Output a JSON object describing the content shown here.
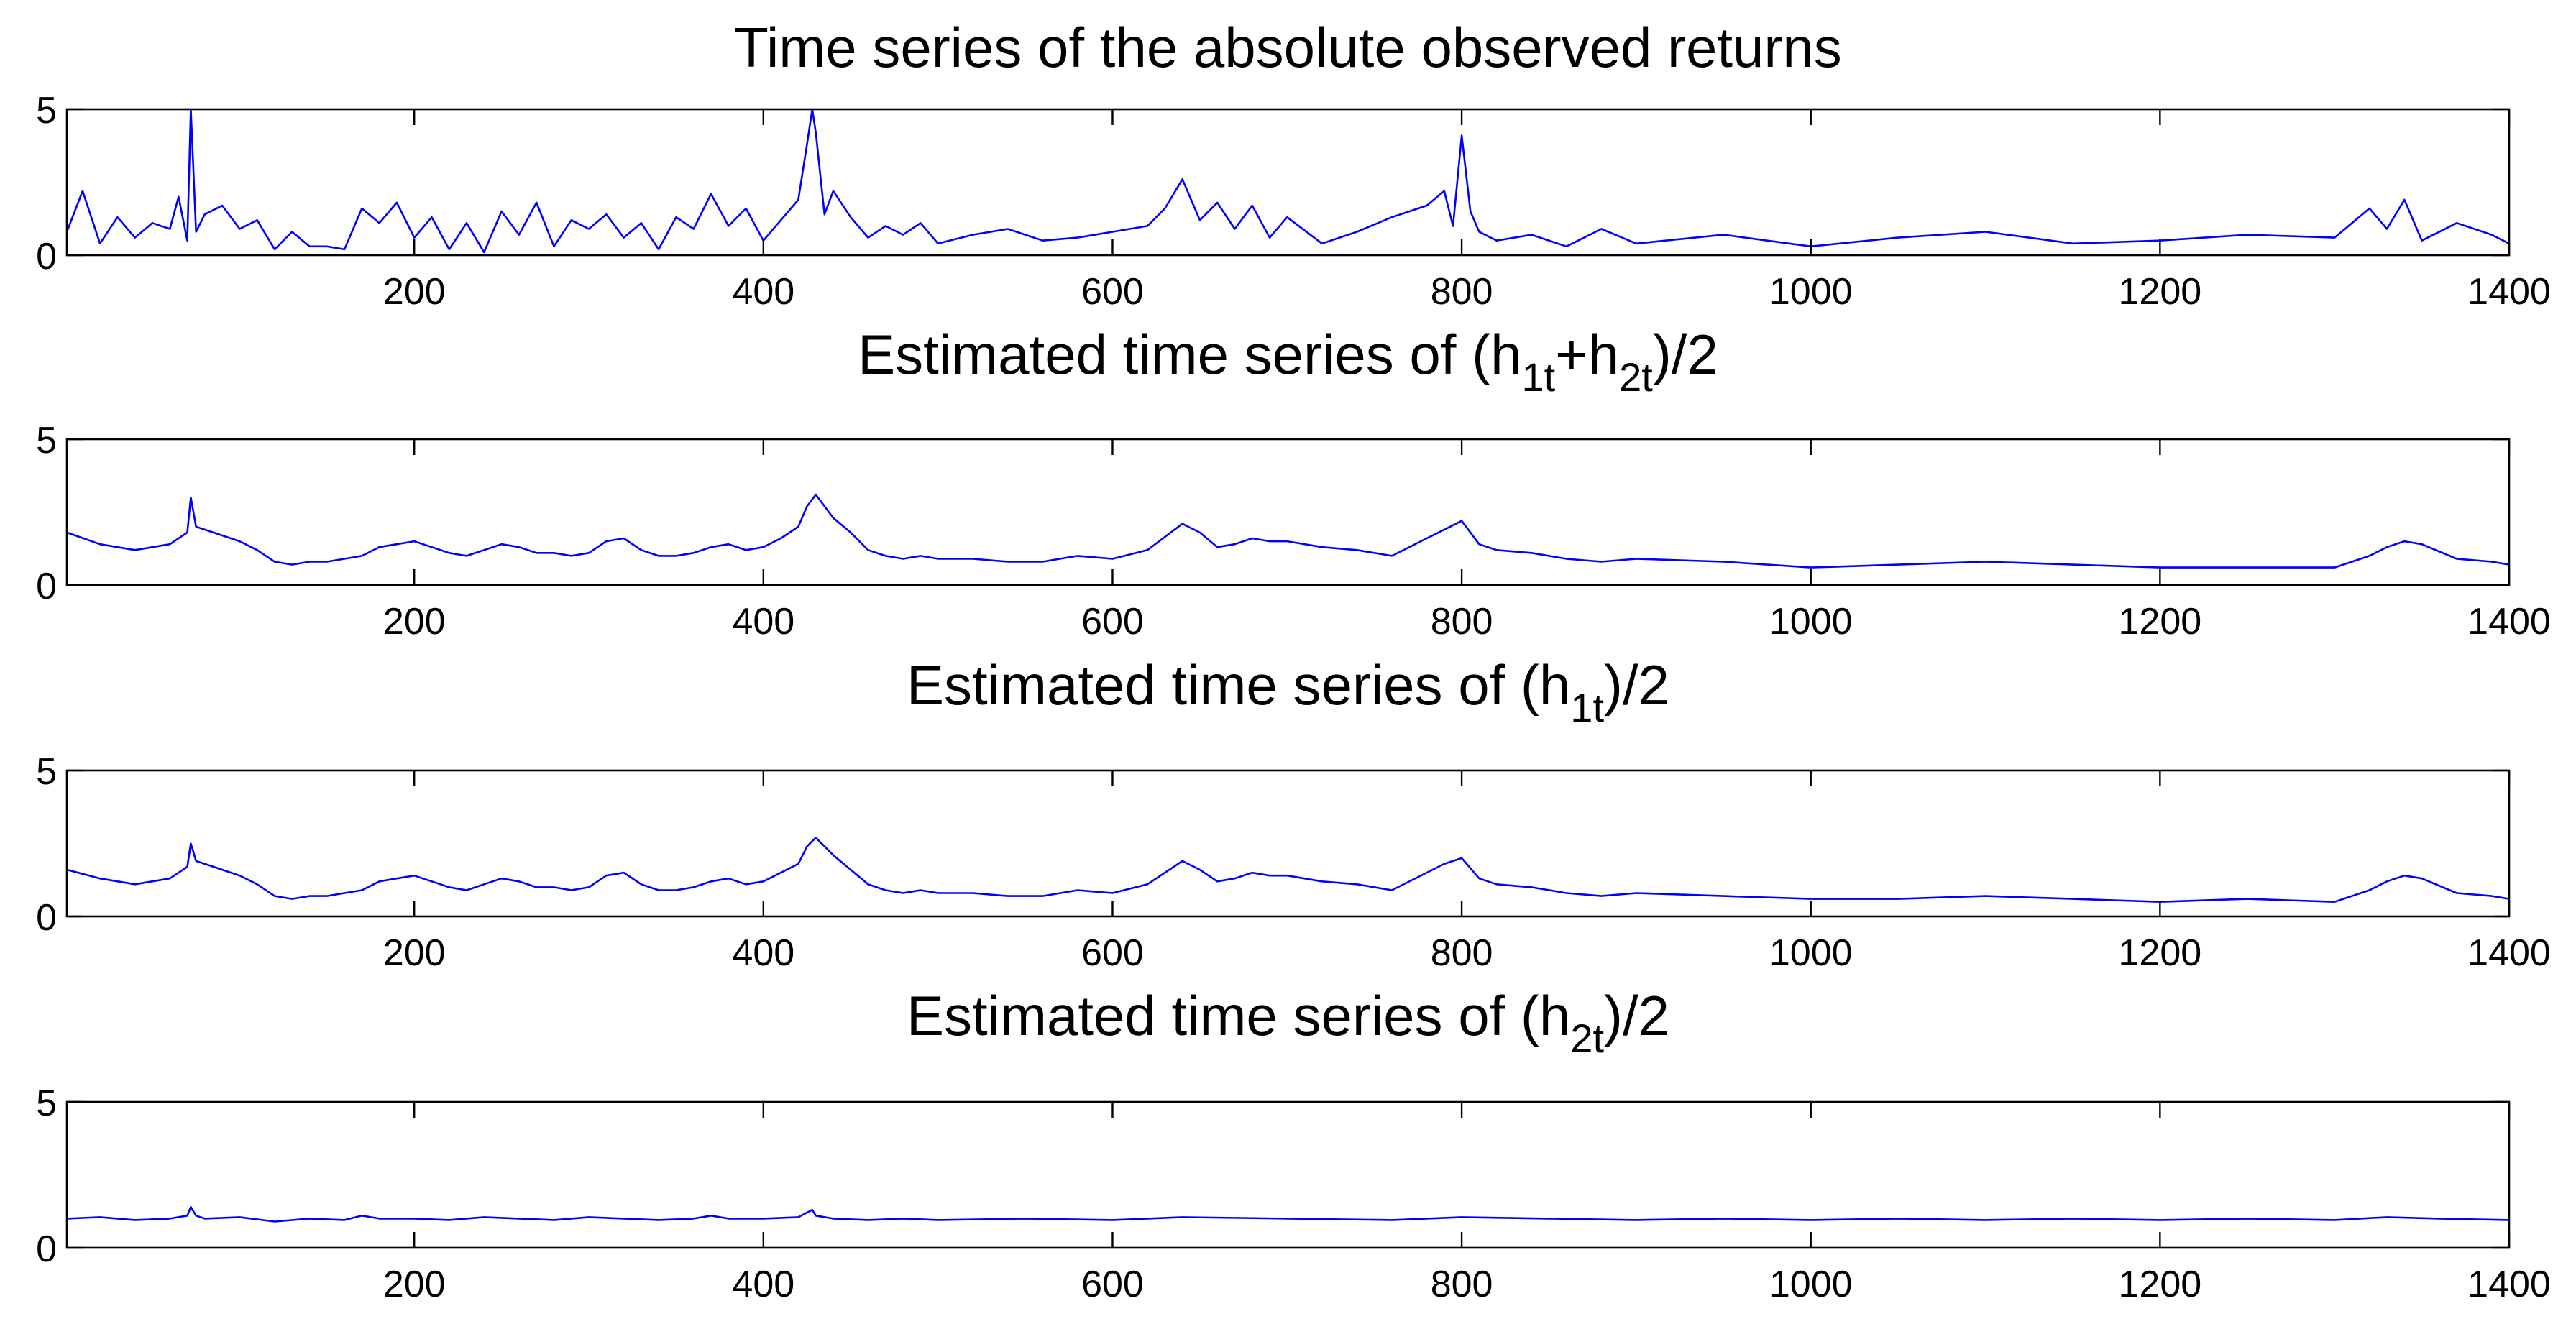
{
  "chart_data": [
    {
      "type": "line",
      "title_parts": [
        {
          "text": "Time series of the absolute observed returns",
          "sub": false
        }
      ],
      "xlim": [
        1,
        1400
      ],
      "ylim": [
        0,
        5
      ],
      "x_ticks": [
        200,
        400,
        600,
        800,
        1000,
        1200,
        1400
      ],
      "y_ticks": [
        0,
        5
      ],
      "color": "#0000ff",
      "series": [
        {
          "x": [
            1,
            10,
            20,
            30,
            40,
            50,
            60,
            65,
            70,
            72,
            75,
            80,
            90,
            100,
            110,
            120,
            130,
            140,
            150,
            160,
            170,
            180,
            190,
            200,
            210,
            220,
            230,
            240,
            250,
            260,
            270,
            280,
            290,
            300,
            310,
            320,
            330,
            340,
            350,
            360,
            370,
            380,
            390,
            400,
            410,
            420,
            425,
            428,
            430,
            435,
            440,
            450,
            460,
            470,
            480,
            490,
            500,
            520,
            540,
            560,
            580,
            600,
            620,
            630,
            640,
            650,
            660,
            670,
            680,
            690,
            700,
            720,
            740,
            760,
            780,
            790,
            795,
            800,
            805,
            810,
            820,
            840,
            860,
            880,
            900,
            950,
            1000,
            1050,
            1100,
            1150,
            1200,
            1250,
            1300,
            1320,
            1330,
            1340,
            1350,
            1370,
            1390,
            1400
          ],
          "y": [
            0.8,
            2.2,
            0.4,
            1.3,
            0.6,
            1.1,
            0.9,
            2.0,
            0.5,
            5.0,
            0.8,
            1.4,
            1.7,
            0.9,
            1.2,
            0.2,
            0.8,
            0.3,
            0.3,
            0.2,
            1.6,
            1.1,
            1.8,
            0.6,
            1.3,
            0.2,
            1.1,
            0.1,
            1.5,
            0.7,
            1.8,
            0.3,
            1.2,
            0.9,
            1.4,
            0.6,
            1.1,
            0.2,
            1.3,
            0.9,
            2.1,
            1.0,
            1.6,
            0.5,
            1.2,
            1.9,
            3.8,
            5.0,
            4.2,
            1.4,
            2.2,
            1.3,
            0.6,
            1.0,
            0.7,
            1.1,
            0.4,
            0.7,
            0.9,
            0.5,
            0.6,
            0.8,
            1.0,
            1.6,
            2.6,
            1.2,
            1.8,
            0.9,
            1.7,
            0.6,
            1.3,
            0.4,
            0.8,
            1.3,
            1.7,
            2.2,
            1.0,
            4.1,
            1.5,
            0.8,
            0.5,
            0.7,
            0.3,
            0.9,
            0.4,
            0.7,
            0.3,
            0.6,
            0.8,
            0.4,
            0.5,
            0.7,
            0.6,
            1.6,
            0.9,
            1.9,
            0.5,
            1.1,
            0.7,
            0.4
          ]
        }
      ]
    },
    {
      "type": "line",
      "title_parts": [
        {
          "text": "Estimated time series of (h",
          "sub": false
        },
        {
          "text": "1t",
          "sub": true
        },
        {
          "text": "+h",
          "sub": false
        },
        {
          "text": "2t",
          "sub": true
        },
        {
          "text": ")/2",
          "sub": false
        }
      ],
      "xlim": [
        1,
        1400
      ],
      "ylim": [
        0,
        5
      ],
      "x_ticks": [
        200,
        400,
        600,
        800,
        1000,
        1200,
        1400
      ],
      "y_ticks": [
        0,
        5
      ],
      "color": "#0000ff",
      "series": [
        {
          "x": [
            1,
            20,
            40,
            60,
            70,
            72,
            75,
            80,
            90,
            100,
            110,
            120,
            130,
            140,
            150,
            160,
            170,
            180,
            190,
            200,
            210,
            220,
            230,
            240,
            250,
            260,
            270,
            280,
            290,
            300,
            310,
            320,
            330,
            340,
            350,
            360,
            370,
            380,
            390,
            400,
            410,
            420,
            425,
            430,
            440,
            450,
            460,
            470,
            480,
            490,
            500,
            520,
            540,
            560,
            580,
            600,
            620,
            640,
            650,
            660,
            670,
            680,
            690,
            700,
            720,
            740,
            760,
            780,
            790,
            800,
            810,
            820,
            840,
            860,
            880,
            900,
            950,
            1000,
            1050,
            1100,
            1150,
            1200,
            1250,
            1300,
            1320,
            1330,
            1340,
            1350,
            1370,
            1390,
            1400
          ],
          "y": [
            1.8,
            1.4,
            1.2,
            1.4,
            1.8,
            3.0,
            2.0,
            1.9,
            1.7,
            1.5,
            1.2,
            0.8,
            0.7,
            0.8,
            0.8,
            0.9,
            1.0,
            1.3,
            1.4,
            1.5,
            1.3,
            1.1,
            1.0,
            1.2,
            1.4,
            1.3,
            1.1,
            1.1,
            1.0,
            1.1,
            1.5,
            1.6,
            1.2,
            1.0,
            1.0,
            1.1,
            1.3,
            1.4,
            1.2,
            1.3,
            1.6,
            2.0,
            2.7,
            3.1,
            2.3,
            1.8,
            1.2,
            1.0,
            0.9,
            1.0,
            0.9,
            0.9,
            0.8,
            0.8,
            1.0,
            0.9,
            1.2,
            2.1,
            1.8,
            1.3,
            1.4,
            1.6,
            1.5,
            1.5,
            1.3,
            1.2,
            1.0,
            1.6,
            1.9,
            2.2,
            1.4,
            1.2,
            1.1,
            0.9,
            0.8,
            0.9,
            0.8,
            0.6,
            0.7,
            0.8,
            0.7,
            0.6,
            0.6,
            0.6,
            1.0,
            1.3,
            1.5,
            1.4,
            0.9,
            0.8,
            0.7
          ]
        }
      ]
    },
    {
      "type": "line",
      "title_parts": [
        {
          "text": "Estimated time series of (h",
          "sub": false
        },
        {
          "text": "1t",
          "sub": true
        },
        {
          "text": ")/2",
          "sub": false
        }
      ],
      "xlim": [
        1,
        1400
      ],
      "ylim": [
        0,
        5
      ],
      "x_ticks": [
        200,
        400,
        600,
        800,
        1000,
        1200,
        1400
      ],
      "y_ticks": [
        0,
        5
      ],
      "color": "#0000ff",
      "series": [
        {
          "x": [
            1,
            20,
            40,
            60,
            70,
            72,
            75,
            80,
            90,
            100,
            110,
            120,
            130,
            140,
            150,
            160,
            170,
            180,
            190,
            200,
            210,
            220,
            230,
            240,
            250,
            260,
            270,
            280,
            290,
            300,
            310,
            320,
            330,
            340,
            350,
            360,
            370,
            380,
            390,
            400,
            410,
            420,
            425,
            430,
            440,
            450,
            460,
            470,
            480,
            490,
            500,
            520,
            540,
            560,
            580,
            600,
            620,
            640,
            650,
            660,
            670,
            680,
            690,
            700,
            720,
            740,
            760,
            780,
            790,
            800,
            810,
            820,
            840,
            860,
            880,
            900,
            950,
            1000,
            1050,
            1100,
            1150,
            1200,
            1250,
            1300,
            1320,
            1330,
            1340,
            1350,
            1370,
            1390,
            1400
          ],
          "y": [
            1.6,
            1.3,
            1.1,
            1.3,
            1.7,
            2.5,
            1.9,
            1.8,
            1.6,
            1.4,
            1.1,
            0.7,
            0.6,
            0.7,
            0.7,
            0.8,
            0.9,
            1.2,
            1.3,
            1.4,
            1.2,
            1.0,
            0.9,
            1.1,
            1.3,
            1.2,
            1.0,
            1.0,
            0.9,
            1.0,
            1.4,
            1.5,
            1.1,
            0.9,
            0.9,
            1.0,
            1.2,
            1.3,
            1.1,
            1.2,
            1.5,
            1.8,
            2.4,
            2.7,
            2.1,
            1.6,
            1.1,
            0.9,
            0.8,
            0.9,
            0.8,
            0.8,
            0.7,
            0.7,
            0.9,
            0.8,
            1.1,
            1.9,
            1.6,
            1.2,
            1.3,
            1.5,
            1.4,
            1.4,
            1.2,
            1.1,
            0.9,
            1.5,
            1.8,
            2.0,
            1.3,
            1.1,
            1.0,
            0.8,
            0.7,
            0.8,
            0.7,
            0.6,
            0.6,
            0.7,
            0.6,
            0.5,
            0.6,
            0.5,
            0.9,
            1.2,
            1.4,
            1.3,
            0.8,
            0.7,
            0.6
          ]
        }
      ]
    },
    {
      "type": "line",
      "title_parts": [
        {
          "text": "Estimated time series of (h",
          "sub": false
        },
        {
          "text": "2t",
          "sub": true
        },
        {
          "text": ")/2",
          "sub": false
        }
      ],
      "xlim": [
        1,
        1400
      ],
      "ylim": [
        0,
        5
      ],
      "x_ticks": [
        200,
        400,
        600,
        800,
        1000,
        1200,
        1400
      ],
      "y_ticks": [
        0,
        5
      ],
      "color": "#0000ff",
      "series": [
        {
          "x": [
            1,
            20,
            40,
            60,
            70,
            72,
            75,
            80,
            100,
            120,
            140,
            160,
            170,
            180,
            200,
            220,
            240,
            260,
            280,
            300,
            320,
            340,
            360,
            370,
            380,
            400,
            420,
            428,
            430,
            440,
            460,
            480,
            500,
            550,
            600,
            640,
            700,
            760,
            800,
            850,
            900,
            950,
            1000,
            1050,
            1100,
            1150,
            1200,
            1250,
            1300,
            1330,
            1360,
            1400
          ],
          "y": [
            1.0,
            1.05,
            0.95,
            1.0,
            1.1,
            1.4,
            1.1,
            1.0,
            1.05,
            0.9,
            1.0,
            0.95,
            1.1,
            1.0,
            1.0,
            0.95,
            1.05,
            1.0,
            0.95,
            1.05,
            1.0,
            0.95,
            1.0,
            1.1,
            1.0,
            1.0,
            1.05,
            1.3,
            1.1,
            1.0,
            0.95,
            1.0,
            0.95,
            1.0,
            0.95,
            1.05,
            1.0,
            0.95,
            1.05,
            1.0,
            0.95,
            1.0,
            0.95,
            1.0,
            0.95,
            1.0,
            0.95,
            1.0,
            0.95,
            1.05,
            1.0,
            0.95
          ]
        }
      ]
    }
  ]
}
